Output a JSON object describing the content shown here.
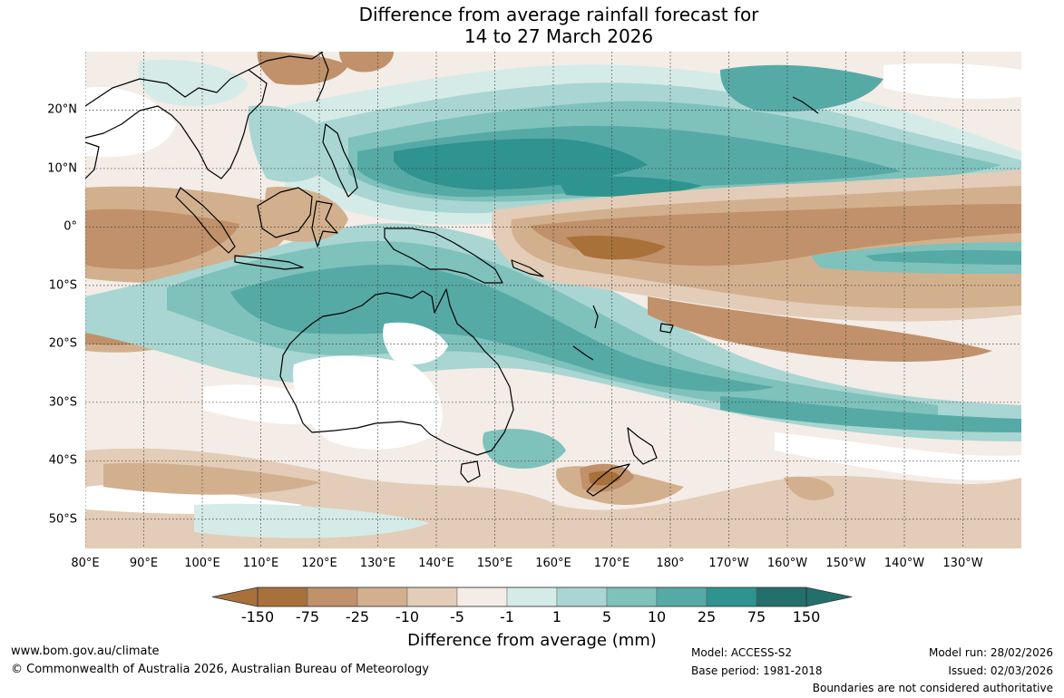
{
  "title": {
    "line1": "Difference from average rainfall forecast for",
    "line2": "14 to 27 March 2026"
  },
  "map": {
    "lat_labels": [
      "20°N",
      "10°N",
      "0°",
      "10°S",
      "20°S",
      "30°S",
      "40°S",
      "50°S"
    ],
    "lon_labels": [
      "80°E",
      "90°E",
      "100°E",
      "110°E",
      "120°E",
      "130°E",
      "140°E",
      "150°E",
      "160°E",
      "170°E",
      "180°",
      "170°W",
      "160°W",
      "150°W",
      "140°W",
      "130°W"
    ],
    "lat_range": [
      -55,
      30
    ],
    "lon_range": [
      80,
      240
    ]
  },
  "legend": {
    "labels": [
      "-150",
      "-75",
      "-25",
      "-10",
      "-5",
      "-1",
      "1",
      "5",
      "10",
      "25",
      "75",
      "150"
    ],
    "colors": [
      "#a8713a",
      "#c0916a",
      "#d2b08e",
      "#e3cdb8",
      "#f4ece6",
      "#ffffff",
      "#d5ebe8",
      "#a9d6d2",
      "#7fc1bb",
      "#56aaa6",
      "#2f938f",
      "#236f6c"
    ],
    "title": "Difference from average (mm)"
  },
  "colors": {
    "dry_strong": "#a8713a",
    "dry_medium": "#c0916a",
    "dry_light": "#d2b08e",
    "dry_faint": "#e3cdb8",
    "dry_trace": "#f4ece6",
    "wet_trace": "#d5ebe8",
    "wet_light": "#a9d6d2",
    "wet_medium": "#7fc1bb",
    "wet_strong": "#56aaa6",
    "wet_heavy": "#2f938f"
  },
  "footer": {
    "website": "www.bom.gov.au/climate",
    "copyright": "© Commonwealth of Australia 2026, Australian Bureau of Meteorology",
    "model": "Model: ACCESS-S2",
    "base_period": "Base period: 1981-2018",
    "model_run": "Model run: 28/02/2026",
    "issued": "Issued: 02/03/2026",
    "disclaimer": "Boundaries are not considered authoritative"
  }
}
